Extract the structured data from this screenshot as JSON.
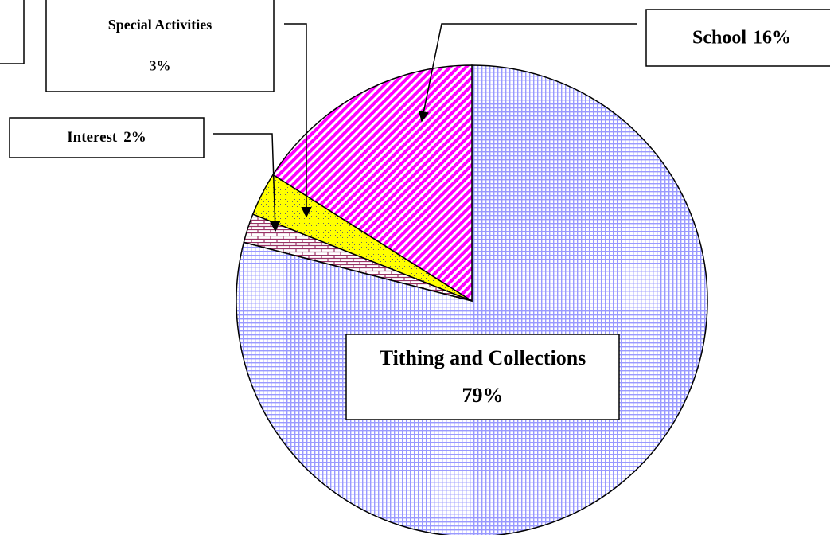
{
  "chart_data": {
    "type": "pie",
    "categories": [
      "Tithing and Collections",
      "Interest",
      "Special Activities",
      "School"
    ],
    "values": [
      79,
      2,
      3,
      16
    ],
    "value_labels": [
      "79%",
      "2%",
      "3%",
      "16%"
    ],
    "colors": [
      "#9999ff",
      "#993366",
      "#ffff00",
      "#ff00ff"
    ]
  }
}
